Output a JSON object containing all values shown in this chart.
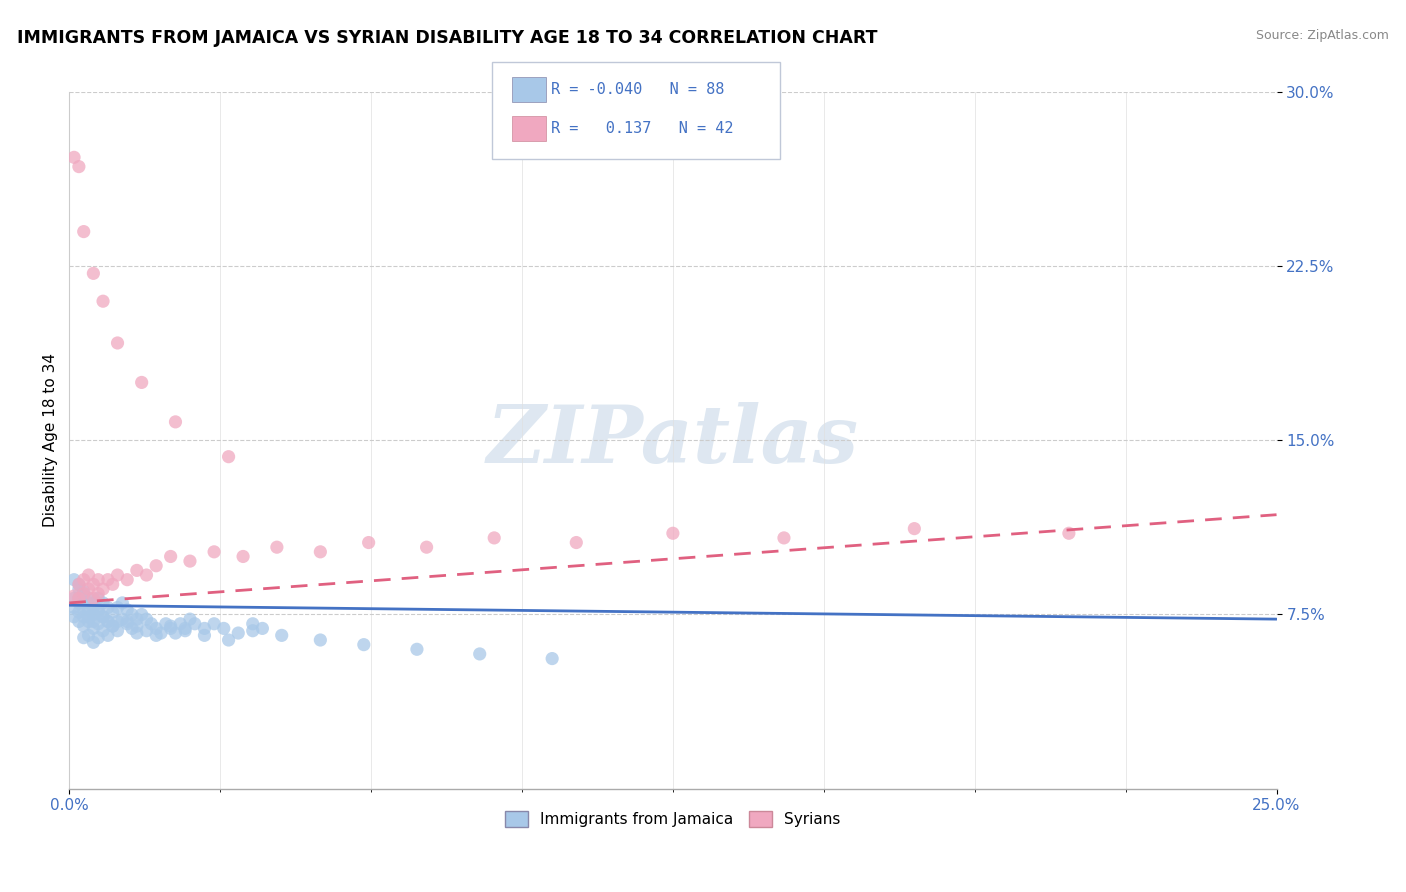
{
  "title": "IMMIGRANTS FROM JAMAICA VS SYRIAN DISABILITY AGE 18 TO 34 CORRELATION CHART",
  "source_text": "Source: ZipAtlas.com",
  "ylabel": "Disability Age 18 to 34",
  "xlim": [
    0.0,
    0.25
  ],
  "ylim": [
    0.0,
    0.3
  ],
  "ytick_vals": [
    0.075,
    0.15,
    0.225,
    0.3
  ],
  "xtick_vals": [
    0.0,
    0.25
  ],
  "legend_r_jamaica": "-0.040",
  "legend_n_jamaica": "88",
  "legend_r_syrian": "0.137",
  "legend_n_syrian": "42",
  "color_jamaica": "#a8c8e8",
  "color_syrian": "#f0a8c0",
  "color_jamaica_line": "#4472c4",
  "color_syrian_line": "#e06080",
  "color_text_blue": "#4472c4",
  "watermark_text": "ZIPatlas",
  "bottom_legend_labels": [
    "Immigrants from Jamaica",
    "Syrians"
  ],
  "jamaica_x": [
    0.001,
    0.001,
    0.001,
    0.002,
    0.002,
    0.002,
    0.002,
    0.003,
    0.003,
    0.003,
    0.003,
    0.003,
    0.004,
    0.004,
    0.004,
    0.004,
    0.005,
    0.005,
    0.005,
    0.005,
    0.006,
    0.006,
    0.006,
    0.006,
    0.007,
    0.007,
    0.007,
    0.008,
    0.008,
    0.008,
    0.009,
    0.009,
    0.01,
    0.01,
    0.011,
    0.011,
    0.012,
    0.012,
    0.013,
    0.013,
    0.014,
    0.014,
    0.015,
    0.016,
    0.017,
    0.018,
    0.019,
    0.02,
    0.021,
    0.022,
    0.023,
    0.024,
    0.025,
    0.026,
    0.028,
    0.03,
    0.032,
    0.035,
    0.038,
    0.04,
    0.001,
    0.002,
    0.002,
    0.003,
    0.003,
    0.004,
    0.005,
    0.005,
    0.006,
    0.007,
    0.008,
    0.009,
    0.01,
    0.012,
    0.014,
    0.016,
    0.018,
    0.021,
    0.024,
    0.028,
    0.033,
    0.038,
    0.044,
    0.052,
    0.061,
    0.072,
    0.085,
    0.1
  ],
  "jamaica_y": [
    0.082,
    0.078,
    0.074,
    0.088,
    0.082,
    0.076,
    0.072,
    0.085,
    0.08,
    0.074,
    0.07,
    0.065,
    0.082,
    0.077,
    0.072,
    0.066,
    0.08,
    0.075,
    0.069,
    0.063,
    0.082,
    0.077,
    0.071,
    0.065,
    0.08,
    0.074,
    0.068,
    0.078,
    0.072,
    0.066,
    0.076,
    0.07,
    0.078,
    0.072,
    0.08,
    0.073,
    0.077,
    0.071,
    0.075,
    0.069,
    0.073,
    0.067,
    0.075,
    0.073,
    0.071,
    0.069,
    0.067,
    0.071,
    0.069,
    0.067,
    0.071,
    0.069,
    0.073,
    0.071,
    0.069,
    0.071,
    0.069,
    0.067,
    0.071,
    0.069,
    0.09,
    0.086,
    0.08,
    0.083,
    0.077,
    0.074,
    0.078,
    0.072,
    0.076,
    0.074,
    0.072,
    0.07,
    0.068,
    0.072,
    0.07,
    0.068,
    0.066,
    0.07,
    0.068,
    0.066,
    0.064,
    0.068,
    0.066,
    0.064,
    0.062,
    0.06,
    0.058,
    0.056
  ],
  "syrian_x": [
    0.001,
    0.002,
    0.002,
    0.003,
    0.003,
    0.004,
    0.004,
    0.005,
    0.005,
    0.006,
    0.006,
    0.007,
    0.008,
    0.009,
    0.01,
    0.012,
    0.014,
    0.016,
    0.018,
    0.021,
    0.025,
    0.03,
    0.036,
    0.043,
    0.052,
    0.062,
    0.074,
    0.088,
    0.105,
    0.125,
    0.148,
    0.175,
    0.207,
    0.001,
    0.002,
    0.003,
    0.005,
    0.007,
    0.01,
    0.015,
    0.022,
    0.033
  ],
  "syrian_y": [
    0.083,
    0.088,
    0.082,
    0.09,
    0.084,
    0.092,
    0.086,
    0.088,
    0.082,
    0.09,
    0.084,
    0.086,
    0.09,
    0.088,
    0.092,
    0.09,
    0.094,
    0.092,
    0.096,
    0.1,
    0.098,
    0.102,
    0.1,
    0.104,
    0.102,
    0.106,
    0.104,
    0.108,
    0.106,
    0.11,
    0.108,
    0.112,
    0.11,
    0.272,
    0.268,
    0.24,
    0.222,
    0.21,
    0.192,
    0.175,
    0.158,
    0.143
  ],
  "jamaica_trend": [
    0.079,
    0.073
  ],
  "syrian_trend_start": 0.08,
  "syrian_trend_end": 0.118
}
